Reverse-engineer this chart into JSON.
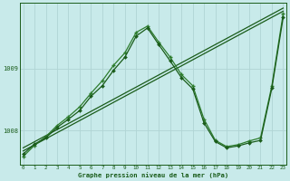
{
  "background_color": "#c8eaea",
  "grid_color": "#b0d4d4",
  "line_color_dark": "#1a5c1a",
  "line_color_medium": "#2e7d2e",
  "title": "Graphe pression niveau de la mer (hPa)",
  "xlabel_ticks": [
    0,
    1,
    2,
    3,
    4,
    5,
    6,
    7,
    8,
    9,
    10,
    11,
    12,
    13,
    14,
    15,
    16,
    17,
    18,
    19,
    20,
    21,
    22,
    23
  ],
  "yticks": [
    1008,
    1009
  ],
  "ylim": [
    1007.45,
    1010.05
  ],
  "xlim": [
    -0.3,
    23.3
  ],
  "series1_x": [
    0,
    23
  ],
  "series1_y": [
    1007.67,
    1009.92
  ],
  "series2_x": [
    0,
    23
  ],
  "series2_y": [
    1007.72,
    1009.97
  ],
  "series3_x": [
    0,
    1,
    2,
    3,
    4,
    5,
    6,
    7,
    8,
    9,
    10,
    11,
    12,
    13,
    14,
    15,
    16,
    17,
    18,
    19,
    20,
    21,
    22,
    23
  ],
  "series3_y": [
    1007.58,
    1007.76,
    1007.9,
    1008.08,
    1008.22,
    1008.38,
    1008.6,
    1008.8,
    1009.05,
    1009.25,
    1009.58,
    1009.68,
    1009.42,
    1009.18,
    1008.9,
    1008.72,
    1008.18,
    1007.84,
    1007.74,
    1007.77,
    1007.83,
    1007.88,
    1008.72,
    1009.88
  ],
  "series4_x": [
    0,
    1,
    2,
    3,
    4,
    5,
    6,
    7,
    8,
    9,
    10,
    11,
    12,
    13,
    14,
    15,
    16,
    17,
    18,
    19,
    20,
    21,
    22,
    23
  ],
  "series4_y": [
    1007.62,
    1007.78,
    1007.88,
    1008.05,
    1008.18,
    1008.32,
    1008.55,
    1008.72,
    1008.97,
    1009.18,
    1009.52,
    1009.65,
    1009.38,
    1009.12,
    1008.85,
    1008.67,
    1008.12,
    1007.82,
    1007.72,
    1007.75,
    1007.8,
    1007.84,
    1008.68,
    1009.82
  ]
}
